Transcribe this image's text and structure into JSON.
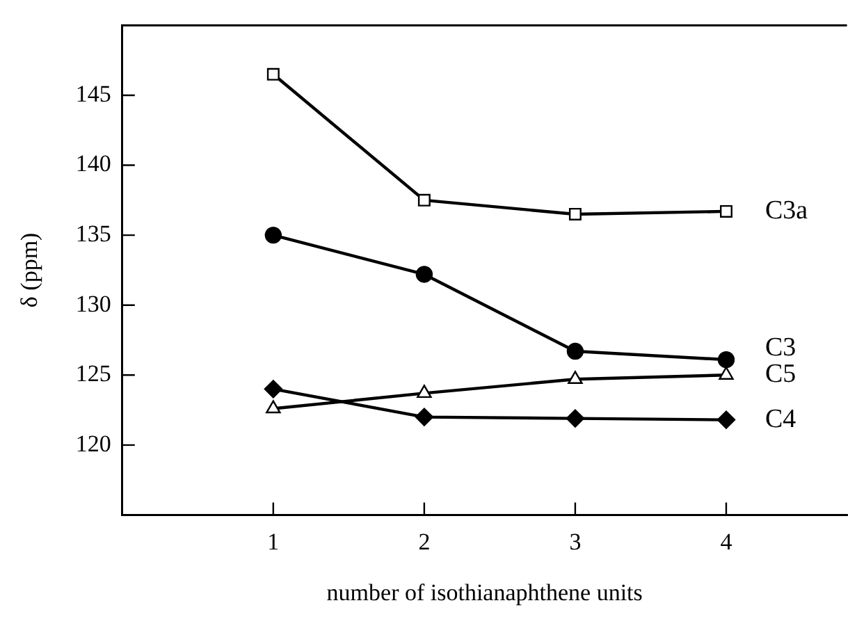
{
  "chart_data": {
    "type": "line",
    "xlabel": "number of isothianaphthene units",
    "ylabel": "δ (ppm)",
    "x": [
      1,
      2,
      3,
      4
    ],
    "xlim": [
      0,
      4.8
    ],
    "xticks": [
      1,
      2,
      3,
      4
    ],
    "ylim": [
      115,
      150
    ],
    "yticks": [
      120,
      125,
      130,
      135,
      140,
      145
    ],
    "grid": false,
    "legend": false,
    "line_style": "solid",
    "series": [
      {
        "name": "C3a",
        "color": "#000000",
        "marker": "square",
        "values": [
          146.5,
          137.5,
          136.5,
          136.7
        ]
      },
      {
        "name": "C3",
        "color": "#000000",
        "marker": "circle",
        "values": [
          135,
          132.2,
          126.7,
          126.1
        ]
      },
      {
        "name": "C5",
        "color": "#000000",
        "marker": "triangle",
        "values": [
          122.6,
          123.7,
          124.7,
          125.0
        ]
      },
      {
        "name": "C4",
        "color": "#000000",
        "marker": "diamond",
        "values": [
          124,
          122,
          121.9,
          121.8
        ]
      }
    ]
  }
}
